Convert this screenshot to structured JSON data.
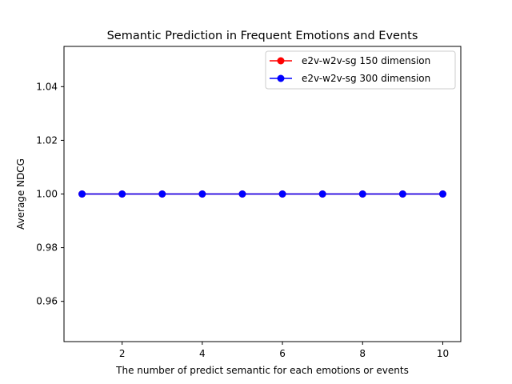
{
  "chart_data": {
    "type": "line",
    "title": "Semantic Prediction in Frequent Emotions and Events",
    "xlabel": "The number of predict semantic for each emotions or events",
    "ylabel": "Average NDCG",
    "x": [
      1,
      2,
      3,
      4,
      5,
      6,
      7,
      8,
      9,
      10
    ],
    "xlim": [
      0.55,
      10.45
    ],
    "ylim": [
      0.945,
      1.055
    ],
    "xticks": [
      2,
      4,
      6,
      8,
      10
    ],
    "xtick_labels": [
      "2",
      "4",
      "6",
      "8",
      "10"
    ],
    "yticks": [
      0.96,
      0.98,
      1.0,
      1.02,
      1.04
    ],
    "ytick_labels": [
      "0.96",
      "0.98",
      "1.00",
      "1.02",
      "1.04"
    ],
    "grid": false,
    "legend_position": "top-right",
    "series": [
      {
        "name": "e2v-w2v-sg 150 dimension",
        "color": "#ff0000",
        "marker": "circle",
        "values": [
          1.0,
          1.0,
          1.0,
          1.0,
          1.0,
          1.0,
          1.0,
          1.0,
          1.0,
          1.0
        ]
      },
      {
        "name": "e2v-w2v-sg 300 dimension",
        "color": "#0000ff",
        "marker": "circle",
        "values": [
          1.0,
          1.0,
          1.0,
          1.0,
          1.0,
          1.0,
          1.0,
          1.0,
          1.0,
          1.0
        ]
      }
    ]
  }
}
